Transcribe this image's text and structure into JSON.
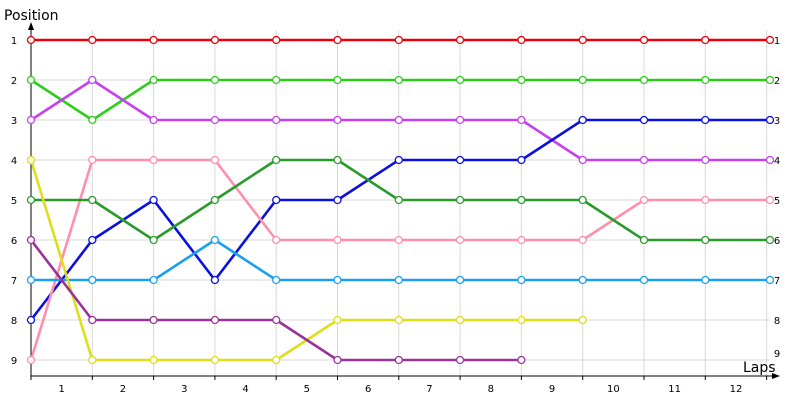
{
  "chart_data": {
    "type": "line",
    "ylabel": "Position",
    "xlabel": "Laps",
    "x_tick_labels": [
      "1",
      "2",
      "3",
      "4",
      "5",
      "6",
      "7",
      "8",
      "9",
      "10",
      "11",
      "12"
    ],
    "y_tick_labels": [
      "1",
      "2",
      "3",
      "4",
      "5",
      "6",
      "7",
      "8",
      "9"
    ],
    "right_tick_labels": [
      "1",
      "2",
      "3",
      "4",
      "5",
      "6",
      "7",
      "8",
      "9"
    ],
    "x_points": [
      0,
      1,
      2,
      3,
      4,
      5,
      6,
      7,
      8,
      9,
      10,
      11,
      12
    ],
    "ylim": [
      1,
      9
    ],
    "y_inverted": true,
    "grid": true,
    "series": [
      {
        "color": "#e8000b",
        "positions": [
          1,
          1,
          1,
          1,
          1,
          1,
          1,
          1,
          1,
          1,
          1,
          1,
          1
        ]
      },
      {
        "color": "#2ecc1b",
        "positions": [
          2,
          3,
          2,
          2,
          2,
          2,
          2,
          2,
          2,
          2,
          2,
          2,
          2
        ]
      },
      {
        "color": "#c640f0",
        "positions": [
          3,
          2,
          3,
          3,
          3,
          3,
          3,
          3,
          3,
          4,
          4,
          4,
          4
        ]
      },
      {
        "color": "#0a10e0",
        "positions": [
          8,
          6,
          5,
          7,
          5,
          5,
          4,
          4,
          4,
          3,
          3,
          3,
          3
        ]
      },
      {
        "color": "#ff8fab",
        "positions": [
          9,
          4,
          4,
          4,
          6,
          6,
          6,
          6,
          6,
          6,
          5,
          5,
          5
        ]
      },
      {
        "color": "#2a9b2a",
        "positions": [
          5,
          5,
          6,
          5,
          4,
          4,
          5,
          5,
          5,
          5,
          6,
          6,
          6
        ]
      },
      {
        "color": "#1aa0f0",
        "positions": [
          7,
          7,
          7,
          6,
          7,
          7,
          7,
          7,
          7,
          7,
          7,
          7,
          7
        ]
      },
      {
        "color": "#dede1a",
        "positions": [
          4,
          9,
          9,
          9,
          9,
          8,
          8,
          8,
          8,
          8
        ]
      },
      {
        "color": "#993399",
        "positions": [
          6,
          8,
          8,
          8,
          8,
          9,
          9,
          9,
          9
        ]
      }
    ]
  }
}
